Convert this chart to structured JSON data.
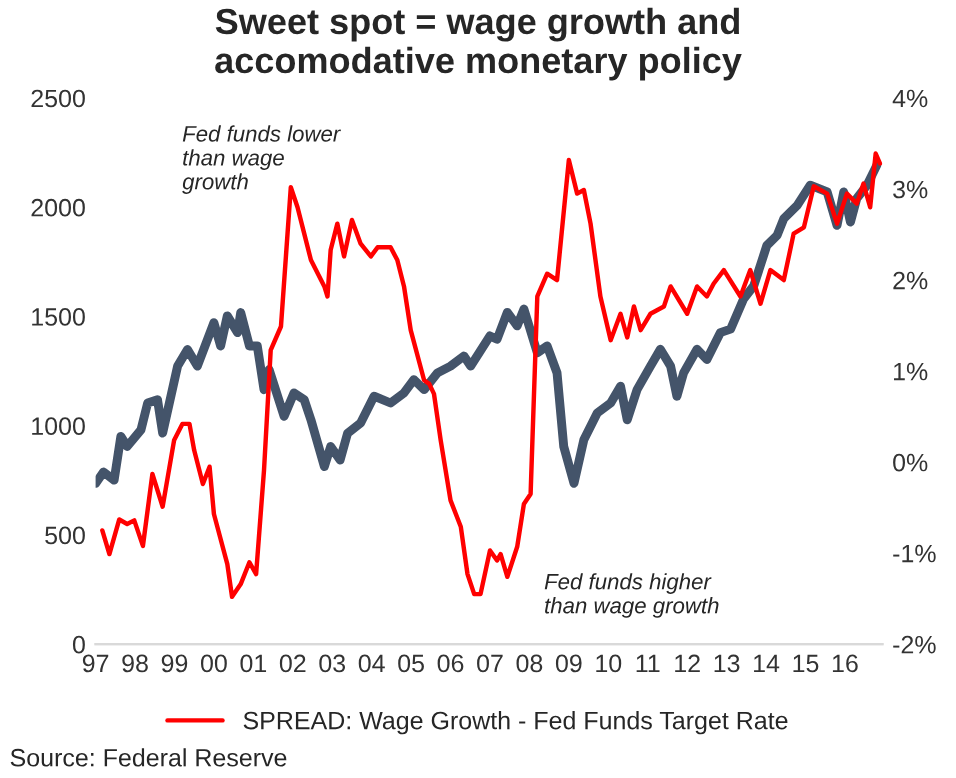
{
  "chart_data": {
    "type": "line",
    "title": "Sweet spot = wage growth and\naccomodative monetary policy",
    "annotations": [
      "Fed funds lower\nthan wage\ngrowth",
      "Fed funds higher\nthan wage growth",
      "Source: Federal Reserve"
    ],
    "xlim": [
      1997,
      2016.95
    ],
    "xticks": [
      {
        "value": 1997,
        "label": "97"
      },
      {
        "value": 1998,
        "label": "98"
      },
      {
        "value": 1999,
        "label": "99"
      },
      {
        "value": 2000,
        "label": "00"
      },
      {
        "value": 2001,
        "label": "01"
      },
      {
        "value": 2002,
        "label": "02"
      },
      {
        "value": 2003,
        "label": "03"
      },
      {
        "value": 2004,
        "label": "04"
      },
      {
        "value": 2005,
        "label": "05"
      },
      {
        "value": 2006,
        "label": "06"
      },
      {
        "value": 2007,
        "label": "07"
      },
      {
        "value": 2008,
        "label": "08"
      },
      {
        "value": 2009,
        "label": "09"
      },
      {
        "value": 2010,
        "label": "10"
      },
      {
        "value": 2011,
        "label": "11"
      },
      {
        "value": 2012,
        "label": "12"
      },
      {
        "value": 2013,
        "label": "13"
      },
      {
        "value": 2014,
        "label": "14"
      },
      {
        "value": 2015,
        "label": "15"
      },
      {
        "value": 2016,
        "label": "16"
      }
    ],
    "ylim": [
      0,
      2500
    ],
    "yticks": [
      0,
      500,
      1000,
      1500,
      2000,
      2500
    ],
    "y2lim": [
      -2,
      4
    ],
    "y2ticks": [
      {
        "value": -2,
        "label": "-2%"
      },
      {
        "value": -1,
        "label": "-1%"
      },
      {
        "value": 0,
        "label": "0%"
      },
      {
        "value": 1,
        "label": "1%"
      },
      {
        "value": 2,
        "label": "2%"
      },
      {
        "value": 3,
        "label": "3%"
      },
      {
        "value": 4,
        "label": "4%"
      }
    ],
    "grid": false,
    "legend": "bottom",
    "series": [
      {
        "color": "#44546a",
        "x": [
          1997.0,
          1997.2,
          1997.47,
          1997.64,
          1997.8,
          1998.15,
          1998.32,
          1998.57,
          1998.7,
          1999.08,
          1999.33,
          1999.58,
          2000.0,
          2000.17,
          2000.34,
          2000.6,
          2000.68,
          2000.9,
          2001.1,
          2001.27,
          2001.4,
          2001.78,
          2002.03,
          2002.29,
          2002.46,
          2002.8,
          2002.96,
          2003.2,
          2003.39,
          2003.72,
          2004.06,
          2004.48,
          2004.82,
          2005.07,
          2005.33,
          2005.67,
          2006.0,
          2006.34,
          2006.51,
          2007.0,
          2007.18,
          2007.44,
          2007.69,
          2007.86,
          2008.2,
          2008.45,
          2008.7,
          2008.87,
          2009.13,
          2009.38,
          2009.72,
          2010.06,
          2010.31,
          2010.48,
          2010.73,
          2011.07,
          2011.32,
          2011.58,
          2011.74,
          2011.91,
          2012.25,
          2012.5,
          2012.84,
          2013.1,
          2013.43,
          2013.69,
          2014.02,
          2014.28,
          2014.45,
          2014.79,
          2015.12,
          2015.55,
          2015.8,
          2015.97,
          2016.14,
          2016.3,
          2016.56,
          2016.81
        ],
        "values": [
          736,
          788,
          751,
          951,
          905,
          981,
          1104,
          1119,
          966,
          1273,
          1349,
          1273,
          1472,
          1365,
          1503,
          1426,
          1518,
          1365,
          1365,
          1165,
          1257,
          1043,
          1150,
          1119,
          1027,
          813,
          905,
          843,
          966,
          1012,
          1135,
          1104,
          1150,
          1211,
          1165,
          1242,
          1273,
          1319,
          1273,
          1411,
          1396,
          1519,
          1457,
          1534,
          1334,
          1365,
          1242,
          905,
          736,
          936,
          1058,
          1104,
          1181,
          1027,
          1165,
          1273,
          1350,
          1273,
          1135,
          1242,
          1350,
          1303,
          1426,
          1442,
          1580,
          1641,
          1825,
          1871,
          1948,
          2009,
          2101,
          2070,
          1917,
          2070,
          1932,
          2040,
          2101,
          2193
        ]
      },
      {
        "name": "SPREAD: Wage Growth - Fed Funds Target Rate",
        "color": "#ff0000",
        "axis": "y2",
        "x": [
          1997.17,
          1997.35,
          1997.6,
          1997.8,
          1997.98,
          1998.2,
          1998.44,
          1998.7,
          1998.99,
          1999.2,
          1999.38,
          1999.5,
          1999.72,
          1999.89,
          2000.0,
          2000.34,
          2000.46,
          2000.68,
          2000.9,
          2001.07,
          2001.27,
          2001.44,
          2001.7,
          2001.95,
          2002.12,
          2002.29,
          2002.46,
          2002.8,
          2002.88,
          2002.96,
          2003.13,
          2003.3,
          2003.5,
          2003.72,
          2003.98,
          2004.15,
          2004.48,
          2004.65,
          2004.82,
          2004.99,
          2005.33,
          2005.46,
          2005.58,
          2005.75,
          2006.0,
          2006.26,
          2006.43,
          2006.6,
          2006.76,
          2007.0,
          2007.18,
          2007.27,
          2007.44,
          2007.69,
          2007.86,
          2008.03,
          2008.2,
          2008.45,
          2008.7,
          2009.0,
          2009.21,
          2009.38,
          2009.55,
          2009.8,
          2010.06,
          2010.31,
          2010.48,
          2010.65,
          2010.82,
          2011.07,
          2011.41,
          2011.58,
          2012.0,
          2012.25,
          2012.5,
          2012.67,
          2012.93,
          2013.35,
          2013.6,
          2013.86,
          2014.11,
          2014.45,
          2014.7,
          2014.96,
          2015.21,
          2015.55,
          2015.8,
          2016.05,
          2016.3,
          2016.47,
          2016.64,
          2016.78,
          2016.89
        ],
        "values": [
          -0.75,
          -1.01,
          -0.63,
          -0.68,
          -0.64,
          -0.92,
          -0.13,
          -0.49,
          0.24,
          0.42,
          0.42,
          0.13,
          -0.24,
          -0.05,
          -0.57,
          -1.12,
          -1.48,
          -1.34,
          -1.1,
          -1.23,
          -0.09,
          1.23,
          1.49,
          3.02,
          2.8,
          2.51,
          2.22,
          1.93,
          1.82,
          2.33,
          2.62,
          2.26,
          2.66,
          2.4,
          2.26,
          2.36,
          2.36,
          2.22,
          1.93,
          1.45,
          0.9,
          0.86,
          0.75,
          0.24,
          -0.42,
          -0.71,
          -1.23,
          -1.45,
          -1.45,
          -0.97,
          -1.08,
          -1.01,
          -1.26,
          -0.93,
          -0.46,
          -0.35,
          1.82,
          2.07,
          2.0,
          3.32,
          2.95,
          2.99,
          2.62,
          1.82,
          1.34,
          1.63,
          1.37,
          1.71,
          1.45,
          1.63,
          1.71,
          1.93,
          1.63,
          1.93,
          1.82,
          1.96,
          2.11,
          1.82,
          2.11,
          1.74,
          2.11,
          2.0,
          2.51,
          2.58,
          3.03,
          2.95,
          2.62,
          2.95,
          2.84,
          3.06,
          2.8,
          3.39,
          3.28
        ]
      }
    ]
  }
}
